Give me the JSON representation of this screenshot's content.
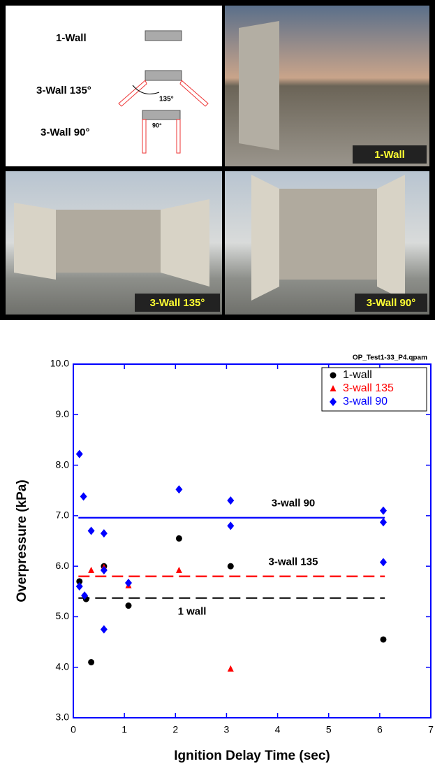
{
  "figure": {
    "diagram": {
      "one_wall": "1-Wall",
      "three_wall_135": "3-Wall 135°",
      "angle_135": "135°",
      "three_wall_90": "3-Wall 90°",
      "angle_90": "90°"
    },
    "photos": [
      "1-Wall",
      "3-Wall 135°",
      "3-Wall 90°"
    ]
  },
  "chart_data": {
    "type": "scatter",
    "annotation": "OP_Test1-33_P4.qpam",
    "x_label": "Ignition Delay Time  (sec)",
    "y_label": "Overpressure (kPa)",
    "xlim": [
      0,
      7
    ],
    "xticks": [
      0,
      1,
      2,
      3,
      4,
      5,
      6,
      7
    ],
    "ylim": [
      3,
      10
    ],
    "yticks": [
      {
        "value": 3,
        "label": "3.0"
      },
      {
        "value": 4,
        "label": "4.0"
      },
      {
        "value": 5,
        "label": "5.0"
      },
      {
        "value": 6,
        "label": "6.0"
      },
      {
        "value": 7,
        "label": "7.0"
      },
      {
        "value": 8,
        "label": "8.0"
      },
      {
        "value": 9,
        "label": "9.0"
      },
      {
        "value": 10,
        "label": "10.0"
      }
    ],
    "legend": "upper right",
    "series": [
      {
        "name": "1-wall",
        "color": "#000000",
        "marker": "circle",
        "x": [
          0.12,
          0.25,
          0.35,
          0.6,
          1.08,
          2.07,
          3.08,
          6.07
        ],
        "values": [
          5.7,
          5.35,
          4.1,
          6.0,
          5.22,
          6.55,
          6.0,
          4.55
        ]
      },
      {
        "name": "3-wall 135",
        "color": "#ff0000",
        "marker": "triangle",
        "x": [
          0.35,
          0.6,
          1.08,
          2.07,
          3.08
        ],
        "values": [
          5.92,
          5.98,
          5.62,
          5.92,
          3.97
        ]
      },
      {
        "name": "3-wall 90",
        "color": "#0000ff",
        "marker": "diamond",
        "x": [
          0.12,
          0.2,
          0.35,
          0.6,
          0.12,
          0.22,
          0.6,
          0.6,
          1.08,
          2.07,
          3.08,
          3.08,
          6.07,
          6.07,
          6.07
        ],
        "values": [
          8.22,
          7.38,
          6.7,
          6.65,
          5.6,
          5.42,
          5.92,
          4.75,
          5.67,
          7.52,
          7.3,
          6.8,
          7.1,
          6.87,
          6.08
        ]
      }
    ],
    "mean_lines": [
      {
        "label": "3-wall 90",
        "value": 6.96,
        "x": [
          0.1,
          6.1
        ],
        "color": "#0000ff",
        "dashed": false
      },
      {
        "label": "3-wall 135",
        "value": 5.8,
        "x": [
          0.1,
          6.1
        ],
        "color": "#ff0000",
        "dashed": true
      },
      {
        "label": "1 wall",
        "value": 5.37,
        "x": [
          0.1,
          6.1
        ],
        "color": "#000000",
        "dashed": true
      }
    ]
  }
}
